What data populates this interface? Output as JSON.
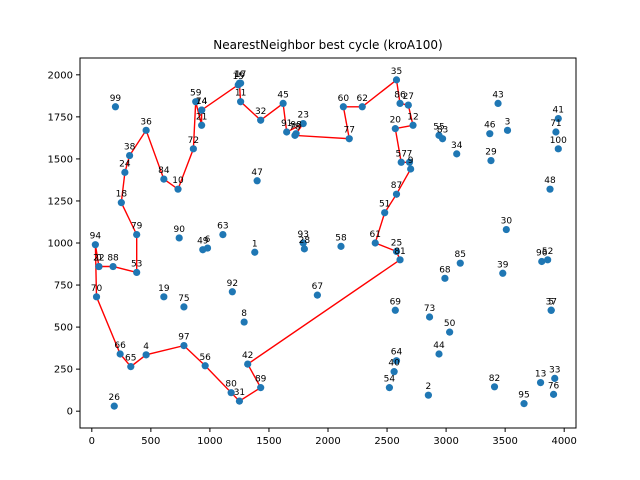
{
  "chart_data": {
    "type": "scatter",
    "title": "NearestNeighbor best cycle (kroA100)",
    "xlabel": "",
    "ylabel": "",
    "xlim": [
      -100,
      4100
    ],
    "ylim": [
      -100,
      2100
    ],
    "xticks": [
      0,
      500,
      1000,
      1500,
      2000,
      2500,
      3000,
      3500,
      4000
    ],
    "yticks": [
      0,
      250,
      500,
      750,
      1000,
      1250,
      1500,
      1750,
      2000
    ],
    "grid": false,
    "colors": {
      "points": "#1f77b4",
      "path": "#ff0000"
    },
    "points": [
      {
        "id": "0",
        "x": 60,
        "y": 860
      },
      {
        "id": "1",
        "x": 1380,
        "y": 945
      },
      {
        "id": "2",
        "x": 2850,
        "y": 95
      },
      {
        "id": "3",
        "x": 3520,
        "y": 1670
      },
      {
        "id": "4",
        "x": 460,
        "y": 335
      },
      {
        "id": "5",
        "x": 3890,
        "y": 600
      },
      {
        "id": "6",
        "x": 980,
        "y": 970
      },
      {
        "id": "7",
        "x": 2690,
        "y": 1480
      },
      {
        "id": "8",
        "x": 1290,
        "y": 530
      },
      {
        "id": "9",
        "x": 2700,
        "y": 1440
      },
      {
        "id": "10",
        "x": 730,
        "y": 1320
      },
      {
        "id": "11",
        "x": 1260,
        "y": 1840
      },
      {
        "id": "12",
        "x": 2720,
        "y": 1700
      },
      {
        "id": "13",
        "x": 3800,
        "y": 170
      },
      {
        "id": "14",
        "x": 930,
        "y": 1790
      },
      {
        "id": "15",
        "x": 1240,
        "y": 1940
      },
      {
        "id": "16",
        "x": 1250,
        "y": 1950
      },
      {
        "id": "17",
        "x": 1260,
        "y": 1950
      },
      {
        "id": "18",
        "x": 250,
        "y": 1240
      },
      {
        "id": "19",
        "x": 610,
        "y": 680
      },
      {
        "id": "20",
        "x": 2570,
        "y": 1680
      },
      {
        "id": "21",
        "x": 930,
        "y": 1700
      },
      {
        "id": "22",
        "x": 60,
        "y": 860
      },
      {
        "id": "23",
        "x": 1790,
        "y": 1710
      },
      {
        "id": "24",
        "x": 280,
        "y": 1420
      },
      {
        "id": "25",
        "x": 2580,
        "y": 950
      },
      {
        "id": "26",
        "x": 190,
        "y": 30
      },
      {
        "id": "27",
        "x": 2680,
        "y": 1820
      },
      {
        "id": "28",
        "x": 1800,
        "y": 965
      },
      {
        "id": "29",
        "x": 3380,
        "y": 1490
      },
      {
        "id": "30",
        "x": 3510,
        "y": 1080
      },
      {
        "id": "31",
        "x": 1250,
        "y": 60
      },
      {
        "id": "32",
        "x": 1430,
        "y": 1730
      },
      {
        "id": "33",
        "x": 3920,
        "y": 195
      },
      {
        "id": "34",
        "x": 3090,
        "y": 1530
      },
      {
        "id": "35",
        "x": 2580,
        "y": 1970
      },
      {
        "id": "36",
        "x": 460,
        "y": 1670
      },
      {
        "id": "37",
        "x": 3890,
        "y": 600
      },
      {
        "id": "38",
        "x": 320,
        "y": 1520
      },
      {
        "id": "39",
        "x": 3480,
        "y": 820
      },
      {
        "id": "40",
        "x": 2560,
        "y": 235
      },
      {
        "id": "41",
        "x": 3950,
        "y": 1740
      },
      {
        "id": "42",
        "x": 1320,
        "y": 280
      },
      {
        "id": "43",
        "x": 3440,
        "y": 1830
      },
      {
        "id": "44",
        "x": 2940,
        "y": 340
      },
      {
        "id": "45",
        "x": 1620,
        "y": 1830
      },
      {
        "id": "46",
        "x": 3370,
        "y": 1650
      },
      {
        "id": "47",
        "x": 1400,
        "y": 1370
      },
      {
        "id": "48",
        "x": 3880,
        "y": 1320
      },
      {
        "id": "49",
        "x": 940,
        "y": 960
      },
      {
        "id": "50",
        "x": 3030,
        "y": 470
      },
      {
        "id": "51",
        "x": 2480,
        "y": 1180
      },
      {
        "id": "52",
        "x": 3860,
        "y": 900
      },
      {
        "id": "53",
        "x": 380,
        "y": 825
      },
      {
        "id": "54",
        "x": 2520,
        "y": 140
      },
      {
        "id": "55",
        "x": 2940,
        "y": 1640
      },
      {
        "id": "56",
        "x": 960,
        "y": 270
      },
      {
        "id": "57",
        "x": 2620,
        "y": 1480
      },
      {
        "id": "58",
        "x": 2110,
        "y": 980
      },
      {
        "id": "59",
        "x": 880,
        "y": 1840
      },
      {
        "id": "60",
        "x": 2130,
        "y": 1810
      },
      {
        "id": "61",
        "x": 2400,
        "y": 1000
      },
      {
        "id": "62",
        "x": 2290,
        "y": 1810
      },
      {
        "id": "63",
        "x": 1110,
        "y": 1050
      },
      {
        "id": "64",
        "x": 2580,
        "y": 300
      },
      {
        "id": "65",
        "x": 330,
        "y": 265
      },
      {
        "id": "66",
        "x": 240,
        "y": 340
      },
      {
        "id": "67",
        "x": 1910,
        "y": 690
      },
      {
        "id": "68",
        "x": 2990,
        "y": 790
      },
      {
        "id": "69",
        "x": 2570,
        "y": 600
      },
      {
        "id": "70",
        "x": 40,
        "y": 680
      },
      {
        "id": "71",
        "x": 3930,
        "y": 1660
      },
      {
        "id": "72",
        "x": 860,
        "y": 1560
      },
      {
        "id": "73",
        "x": 2860,
        "y": 560
      },
      {
        "id": "74",
        "x": 930,
        "y": 1790
      },
      {
        "id": "75",
        "x": 780,
        "y": 620
      },
      {
        "id": "76",
        "x": 3910,
        "y": 100
      },
      {
        "id": "77",
        "x": 2180,
        "y": 1620
      },
      {
        "id": "78",
        "x": 1720,
        "y": 1640
      },
      {
        "id": "79",
        "x": 380,
        "y": 1050
      },
      {
        "id": "80",
        "x": 1180,
        "y": 110
      },
      {
        "id": "81",
        "x": 2610,
        "y": 900
      },
      {
        "id": "82",
        "x": 3410,
        "y": 145
      },
      {
        "id": "83",
        "x": 2970,
        "y": 1620
      },
      {
        "id": "84",
        "x": 610,
        "y": 1380
      },
      {
        "id": "85",
        "x": 3120,
        "y": 880
      },
      {
        "id": "86",
        "x": 2610,
        "y": 1830
      },
      {
        "id": "87",
        "x": 2580,
        "y": 1290
      },
      {
        "id": "88",
        "x": 180,
        "y": 860
      },
      {
        "id": "89",
        "x": 1430,
        "y": 140
      },
      {
        "id": "90",
        "x": 740,
        "y": 1030
      },
      {
        "id": "91",
        "x": 1650,
        "y": 1660
      },
      {
        "id": "92",
        "x": 1190,
        "y": 710
      },
      {
        "id": "93",
        "x": 1790,
        "y": 1000
      },
      {
        "id": "94",
        "x": 30,
        "y": 990
      },
      {
        "id": "95",
        "x": 3660,
        "y": 45
      },
      {
        "id": "96",
        "x": 3810,
        "y": 890
      },
      {
        "id": "97",
        "x": 780,
        "y": 390
      },
      {
        "id": "98",
        "x": 1730,
        "y": 1650
      },
      {
        "id": "99",
        "x": 200,
        "y": 1810
      },
      {
        "id": "100",
        "x": 3950,
        "y": 1560
      }
    ],
    "path": [
      "81",
      "25",
      "61",
      "51",
      "87",
      "9",
      "7",
      "57",
      "20",
      "12",
      "27",
      "86",
      "35",
      "62",
      "60",
      "77",
      "78",
      "98",
      "23",
      "91",
      "45",
      "32",
      "11",
      "16",
      "15",
      "17",
      "74",
      "14",
      "21",
      "59",
      "72",
      "10",
      "84",
      "36",
      "38",
      "24",
      "18",
      "79",
      "53",
      "88",
      "0",
      "22",
      "94",
      "70",
      "66",
      "65",
      "4",
      "97",
      "56",
      "80",
      "31",
      "89",
      "42",
      "81"
    ]
  }
}
